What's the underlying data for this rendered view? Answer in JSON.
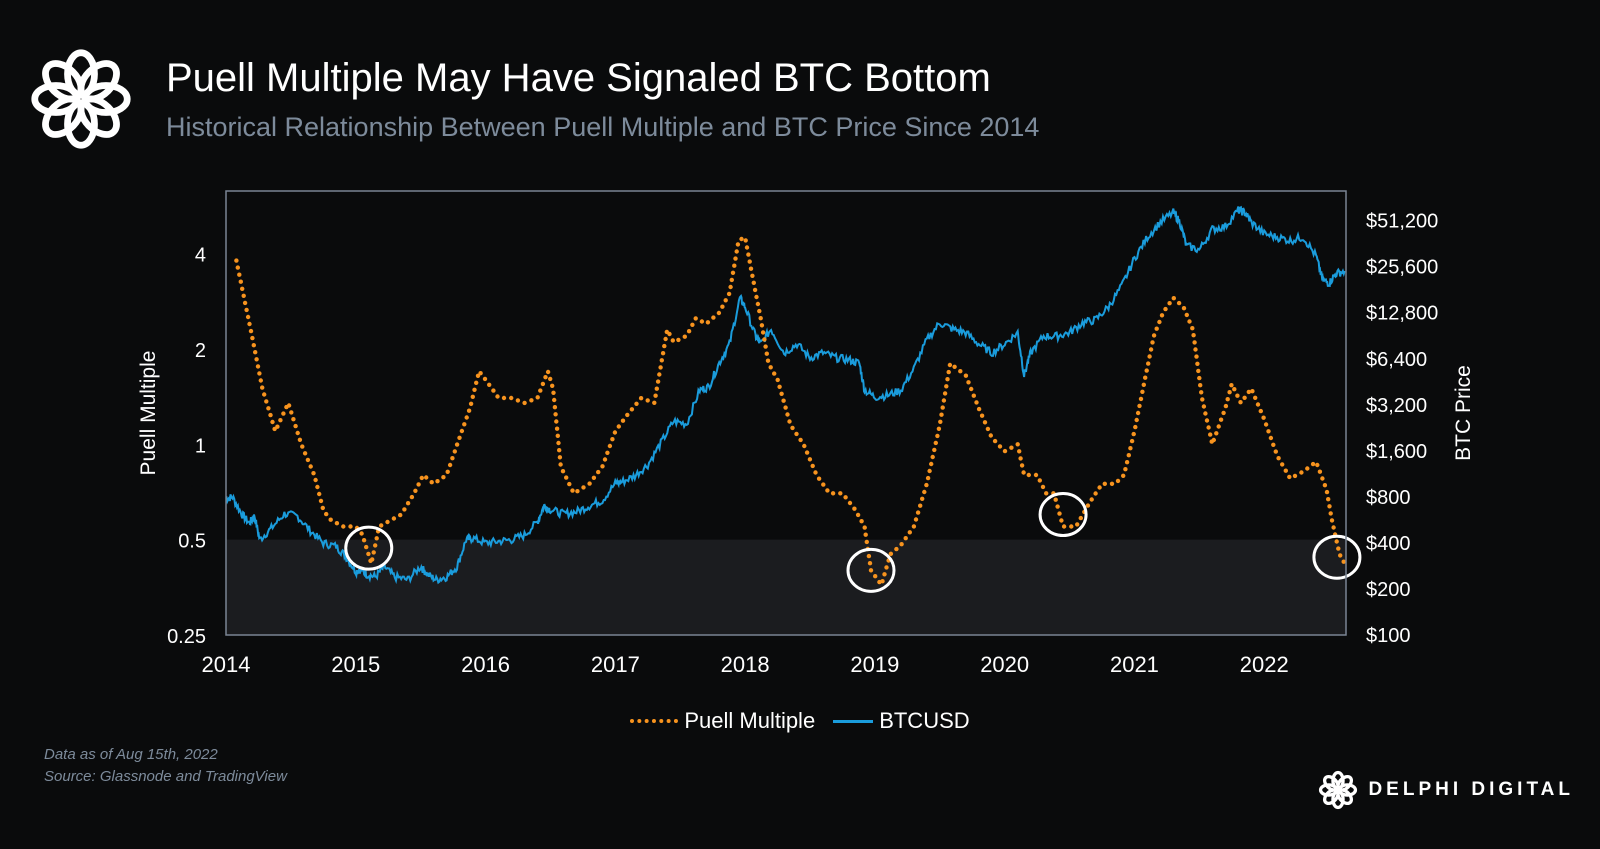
{
  "header": {
    "title": "Puell Multiple May Have Signaled BTC Bottom",
    "subtitle": "Historical Relationship Between Puell Multiple and BTC Price Since 2014"
  },
  "footer": {
    "data_date": "Data as of Aug 15th, 2022",
    "source": "Source: Glassnode and TradingView",
    "brand": "DELPHI DIGITAL"
  },
  "colors": {
    "puell": "#f7931e",
    "btc": "#1a9cdc",
    "background": "#0a0b0c",
    "low_band": "#1b1c1f",
    "plot_border": "#7a8593"
  },
  "icons": {
    "logo": "delphi-knot-icon"
  },
  "chart_data": {
    "type": "line",
    "xlabel": "",
    "ylabel_left": "Puell Multiple",
    "ylabel_right": "BTC Price",
    "x_ticks": [
      "2014",
      "2015",
      "2016",
      "2017",
      "2018",
      "2019",
      "2020",
      "2021",
      "2022"
    ],
    "y_left_ticks": [
      "0.25",
      "0.5",
      "1",
      "2",
      "4"
    ],
    "y_right_ticks": [
      "$100",
      "$200",
      "$400",
      "$800",
      "$1,600",
      "$3,200",
      "$6,400",
      "$12,800",
      "$25,600",
      "$51,200"
    ],
    "xlim": [
      2014.0,
      2022.63
    ],
    "ylim_left": [
      0.25,
      6.3
    ],
    "ylim_right": [
      100,
      80000
    ],
    "y_scale": "log",
    "shaded_band_left": [
      0.25,
      0.5
    ],
    "legend": {
      "placement": "bottom-center",
      "entries": [
        "Puell Multiple",
        "BTCUSD"
      ]
    },
    "series": [
      {
        "name": "Puell Multiple",
        "style": "dotted",
        "x": [
          2014.08,
          2014.2,
          2014.28,
          2014.38,
          2014.48,
          2014.58,
          2014.68,
          2014.75,
          2014.8,
          2014.9,
          2015.0,
          2015.05,
          2015.12,
          2015.18,
          2015.25,
          2015.35,
          2015.45,
          2015.52,
          2015.6,
          2015.7,
          2015.8,
          2015.88,
          2015.95,
          2016.0,
          2016.1,
          2016.2,
          2016.3,
          2016.4,
          2016.48,
          2016.52,
          2016.58,
          2016.68,
          2016.8,
          2016.9,
          2017.0,
          2017.1,
          2017.2,
          2017.3,
          2017.4,
          2017.45,
          2017.55,
          2017.62,
          2017.7,
          2017.8,
          2017.88,
          2017.95,
          2018.0,
          2018.05,
          2018.12,
          2018.18,
          2018.25,
          2018.35,
          2018.45,
          2018.55,
          2018.65,
          2018.75,
          2018.85,
          2018.92,
          2018.97,
          2019.05,
          2019.12,
          2019.2,
          2019.3,
          2019.4,
          2019.5,
          2019.58,
          2019.7,
          2019.8,
          2019.9,
          2020.0,
          2020.1,
          2020.15,
          2020.25,
          2020.32,
          2020.38,
          2020.45,
          2020.55,
          2020.65,
          2020.75,
          2020.85,
          2020.92,
          2021.0,
          2021.08,
          2021.15,
          2021.22,
          2021.3,
          2021.38,
          2021.45,
          2021.52,
          2021.6,
          2021.7,
          2021.75,
          2021.82,
          2021.9,
          2022.0,
          2022.1,
          2022.2,
          2022.3,
          2022.4,
          2022.48,
          2022.52,
          2022.58,
          2022.62
        ],
        "values": [
          3.8,
          2.2,
          1.5,
          1.1,
          1.35,
          1.0,
          0.8,
          0.62,
          0.58,
          0.55,
          0.55,
          0.52,
          0.42,
          0.55,
          0.57,
          0.6,
          0.7,
          0.8,
          0.75,
          0.8,
          1.05,
          1.3,
          1.7,
          1.6,
          1.4,
          1.4,
          1.35,
          1.4,
          1.7,
          1.5,
          0.85,
          0.7,
          0.75,
          0.85,
          1.1,
          1.25,
          1.4,
          1.35,
          2.3,
          2.1,
          2.2,
          2.5,
          2.4,
          2.6,
          3.0,
          4.4,
          4.5,
          3.5,
          2.5,
          1.8,
          1.6,
          1.15,
          1.0,
          0.8,
          0.7,
          0.7,
          0.62,
          0.55,
          0.4,
          0.36,
          0.45,
          0.48,
          0.55,
          0.75,
          1.15,
          1.8,
          1.65,
          1.3,
          1.05,
          0.95,
          1.0,
          0.8,
          0.8,
          0.7,
          0.7,
          0.55,
          0.55,
          0.65,
          0.75,
          0.75,
          0.8,
          1.1,
          1.6,
          2.2,
          2.6,
          2.9,
          2.7,
          2.3,
          1.4,
          1.0,
          1.3,
          1.55,
          1.35,
          1.5,
          1.2,
          0.92,
          0.78,
          0.82,
          0.88,
          0.72,
          0.58,
          0.45,
          0.42
        ],
        "highlight_circles": [
          {
            "x": 2015.1,
            "y": 0.47
          },
          {
            "x": 2018.97,
            "y": 0.4
          },
          {
            "x": 2020.45,
            "y": 0.6
          },
          {
            "x": 2022.56,
            "y": 0.44
          }
        ]
      },
      {
        "name": "BTCUSD",
        "style": "solid",
        "x": [
          2014.0,
          2014.05,
          2014.12,
          2014.18,
          2014.22,
          2014.26,
          2014.35,
          2014.45,
          2014.55,
          2014.65,
          2014.75,
          2014.85,
          2014.92,
          2015.0,
          2015.04,
          2015.08,
          2015.15,
          2015.22,
          2015.3,
          2015.4,
          2015.5,
          2015.55,
          2015.62,
          2015.7,
          2015.78,
          2015.85,
          2015.9,
          2016.0,
          2016.1,
          2016.2,
          2016.3,
          2016.4,
          2016.45,
          2016.5,
          2016.6,
          2016.7,
          2016.8,
          2016.9,
          2017.0,
          2017.05,
          2017.15,
          2017.25,
          2017.35,
          2017.45,
          2017.55,
          2017.65,
          2017.72,
          2017.8,
          2017.88,
          2017.96,
          2018.0,
          2018.08,
          2018.12,
          2018.2,
          2018.3,
          2018.4,
          2018.5,
          2018.6,
          2018.7,
          2018.8,
          2018.88,
          2018.92,
          2019.0,
          2019.1,
          2019.2,
          2019.3,
          2019.4,
          2019.5,
          2019.6,
          2019.7,
          2019.8,
          2019.9,
          2020.0,
          2020.1,
          2020.15,
          2020.2,
          2020.3,
          2020.4,
          2020.5,
          2020.6,
          2020.7,
          2020.8,
          2020.9,
          2021.0,
          2021.1,
          2021.2,
          2021.3,
          2021.35,
          2021.4,
          2021.5,
          2021.6,
          2021.7,
          2021.8,
          2021.85,
          2021.9,
          2022.0,
          2022.1,
          2022.2,
          2022.3,
          2022.4,
          2022.45,
          2022.5,
          2022.55,
          2022.62
        ],
        "values": [
          780,
          800,
          620,
          540,
          600,
          420,
          500,
          620,
          600,
          480,
          400,
          380,
          330,
          260,
          270,
          250,
          240,
          280,
          240,
          230,
          280,
          250,
          230,
          240,
          280,
          420,
          430,
          400,
          410,
          420,
          450,
          550,
          700,
          660,
          620,
          640,
          700,
          760,
          980,
          1000,
          1100,
          1300,
          1800,
          2500,
          2400,
          4000,
          4200,
          6000,
          8000,
          16000,
          14000,
          9000,
          8000,
          10000,
          7000,
          8000,
          6500,
          7000,
          6500,
          6300,
          6000,
          4000,
          3600,
          3700,
          4000,
          5500,
          8500,
          11000,
          10000,
          9500,
          8000,
          7000,
          8000,
          9500,
          5000,
          7000,
          9000,
          9000,
          9500,
          11000,
          11500,
          14000,
          19000,
          29000,
          40000,
          50000,
          58000,
          50000,
          35000,
          33000,
          45000,
          47000,
          60000,
          58000,
          50000,
          42000,
          40000,
          38000,
          40000,
          30000,
          21000,
          20000,
          23000,
          24000
        ]
      }
    ]
  }
}
